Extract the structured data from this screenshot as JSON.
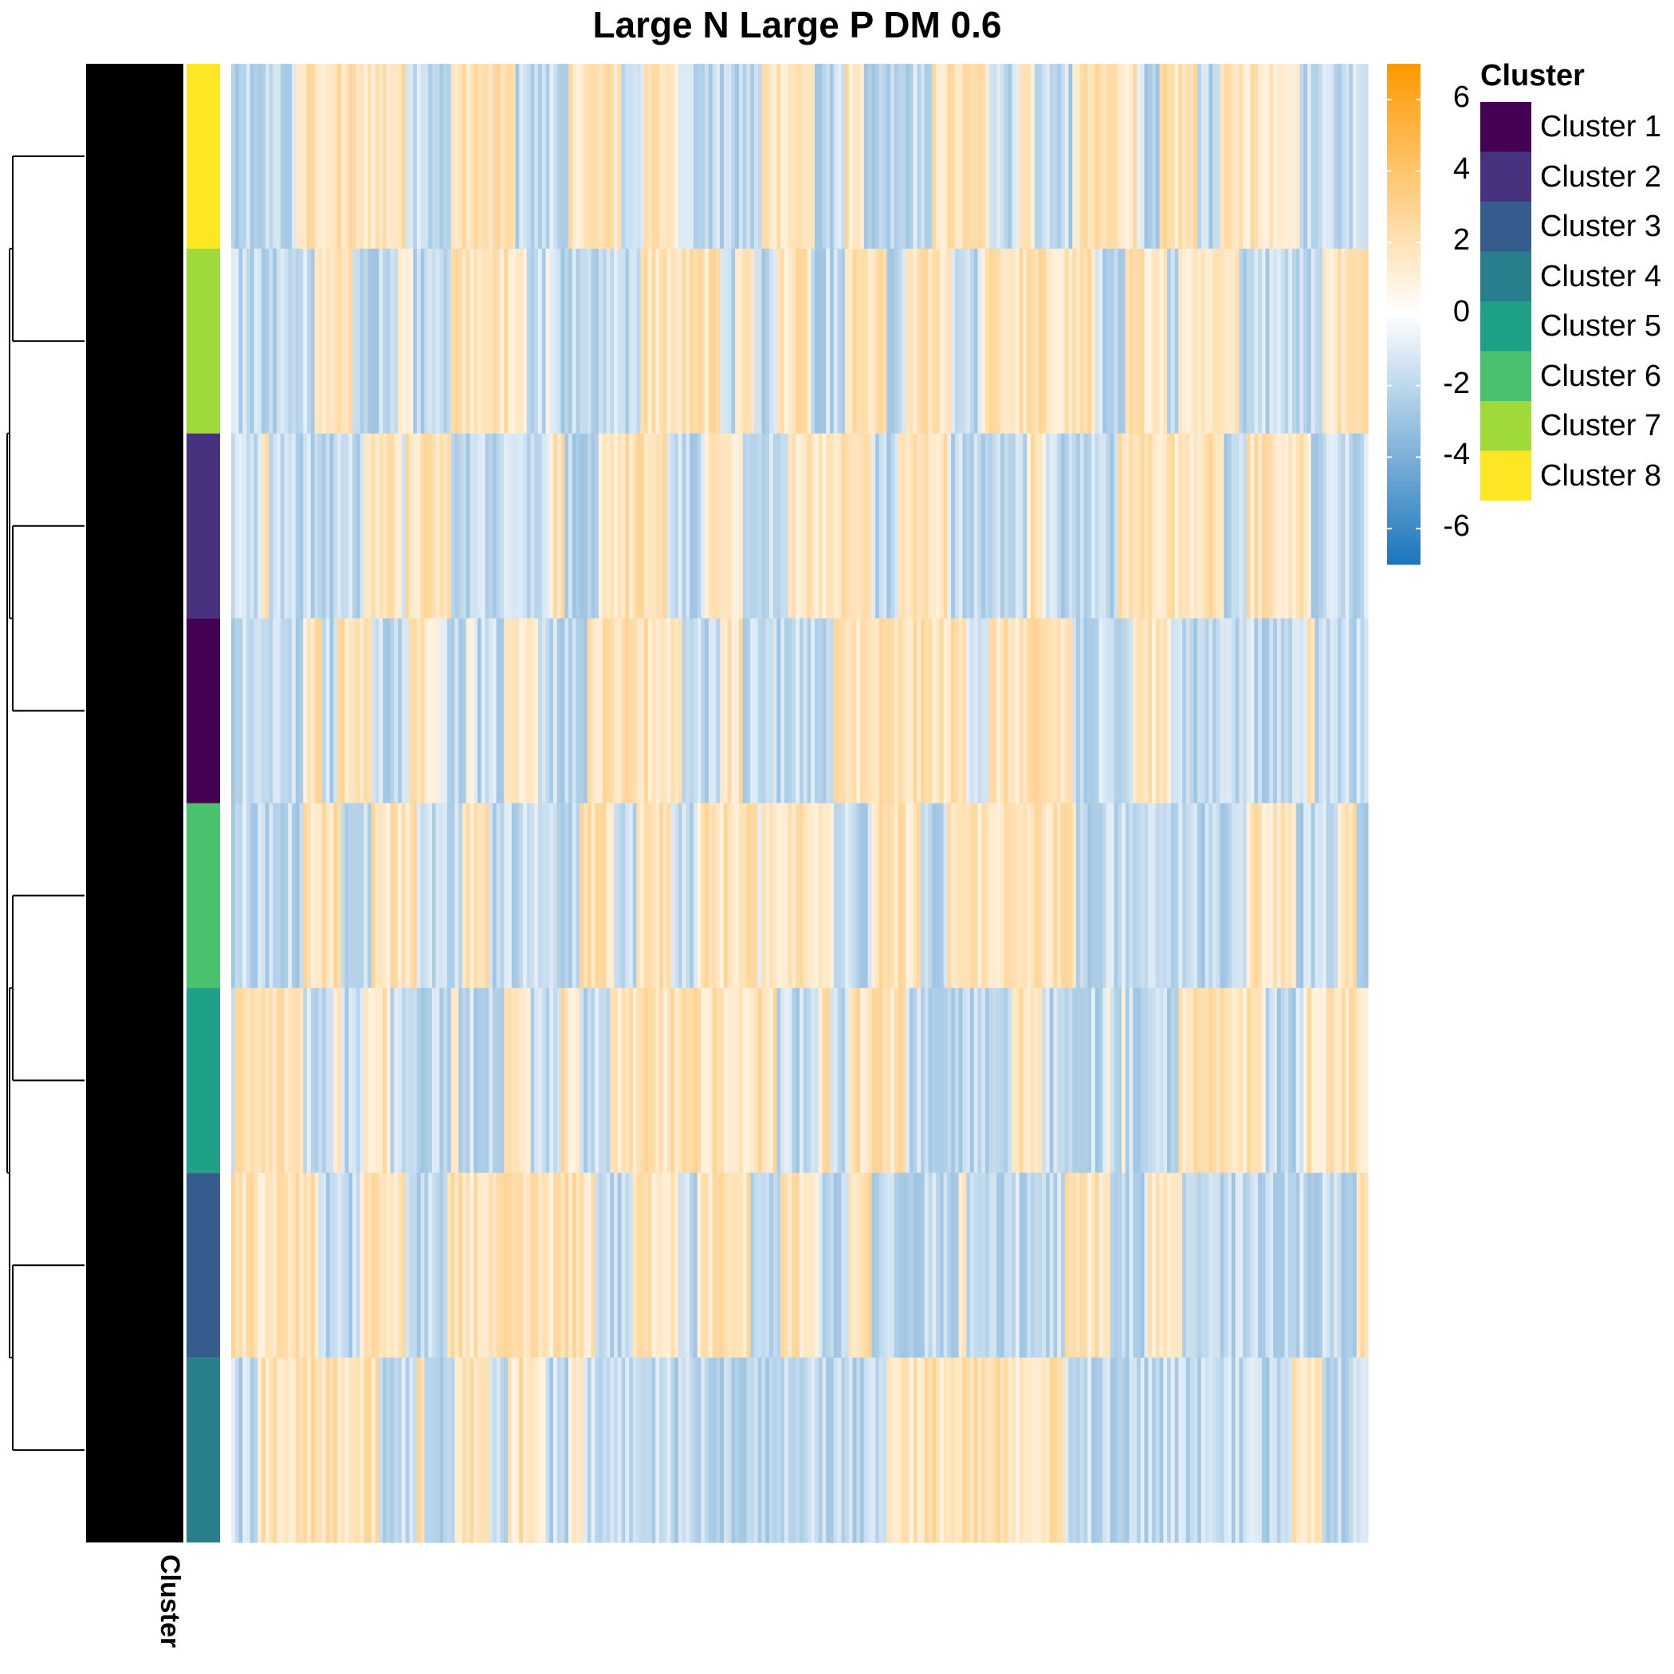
{
  "chart_data": {
    "type": "heatmap",
    "title": "Large N Large P DM 0.6",
    "row_annotation_label": "Cluster",
    "row_groups_top_to_bottom": [
      "Cluster 8",
      "Cluster 7",
      "Cluster 2",
      "Cluster 1",
      "Cluster 6",
      "Cluster 5",
      "Cluster 3",
      "Cluster 4"
    ],
    "colorbar": {
      "range": [
        -7,
        7
      ],
      "ticks": [
        6,
        4,
        2,
        0,
        -2,
        -4,
        -6
      ],
      "tick_labels": [
        "6",
        "4",
        "2",
        "0",
        "-2",
        "-4",
        "-6"
      ],
      "low_color": "#1a75bc",
      "mid_color": "#ffffff",
      "high_color": "#ff9900"
    },
    "legend": {
      "title": "Cluster",
      "placement": "right",
      "items": [
        {
          "label": "Cluster 1",
          "color": "#440154"
        },
        {
          "label": "Cluster 2",
          "color": "#46327e"
        },
        {
          "label": "Cluster 3",
          "color": "#365c8d"
        },
        {
          "label": "Cluster 4",
          "color": "#277f8e"
        },
        {
          "label": "Cluster 5",
          "color": "#1fa187"
        },
        {
          "label": "Cluster 6",
          "color": "#4ac16d"
        },
        {
          "label": "Cluster 7",
          "color": "#a0da39"
        },
        {
          "label": "Cluster 8",
          "color": "#fde725"
        }
      ]
    }
  }
}
